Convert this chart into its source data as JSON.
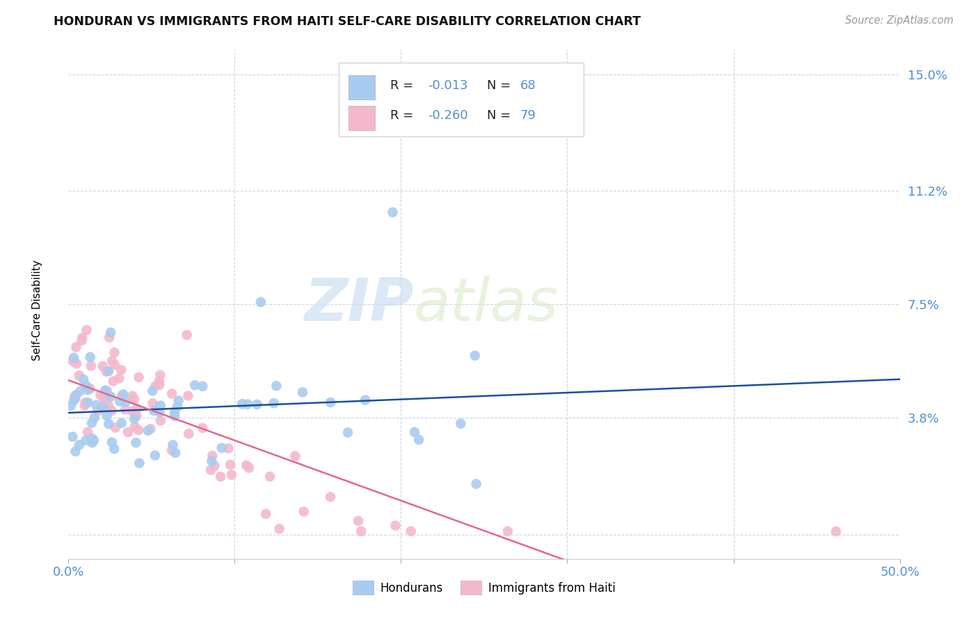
{
  "title": "HONDURAN VS IMMIGRANTS FROM HAITI SELF-CARE DISABILITY CORRELATION CHART",
  "source": "Source: ZipAtlas.com",
  "ylabel": "Self-Care Disability",
  "xlim": [
    0.0,
    0.5
  ],
  "ylim": [
    -0.008,
    0.158
  ],
  "ytick_positions": [
    0.0,
    0.038,
    0.075,
    0.112,
    0.15
  ],
  "ytick_labels": [
    "",
    "3.8%",
    "7.5%",
    "11.2%",
    "15.0%"
  ],
  "blue_color": "#A8CCF0",
  "pink_color": "#F4B8CC",
  "blue_line_color": "#1A4FA0",
  "pink_line_color": "#E8648C",
  "R_blue": -0.013,
  "N_blue": 68,
  "R_pink": -0.26,
  "N_pink": 79,
  "legend_label_blue": "Hondurans",
  "legend_label_pink": "Immigrants from Haiti",
  "watermark_zip": "ZIP",
  "watermark_atlas": "atlas",
  "background_color": "#FFFFFF",
  "grid_color": "#C8D8E8",
  "tick_color": "#5090D0"
}
